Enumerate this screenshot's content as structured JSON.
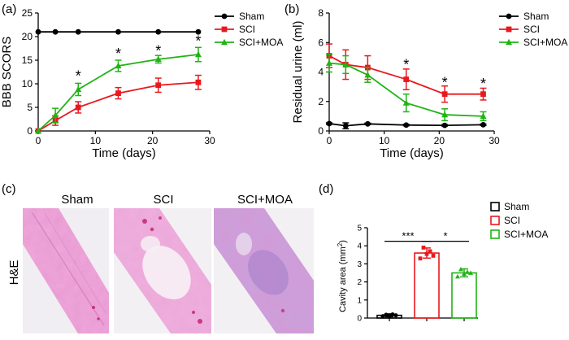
{
  "panel_labels": [
    "(a)",
    "(b)",
    "(c)",
    "(d)"
  ],
  "colors": {
    "sham": "#000000",
    "sci": "#e8191e",
    "moa": "#1fb414"
  },
  "chart_data": [
    {
      "panel": "a",
      "type": "line",
      "xlabel": "Time (days)",
      "ylabel": "BBB SCORS",
      "xlim": [
        0,
        30
      ],
      "ylim": [
        0,
        25
      ],
      "xticks": [
        0,
        10,
        20,
        30
      ],
      "yticks": [
        0,
        5,
        10,
        15,
        20,
        25
      ],
      "x": [
        0,
        3,
        7,
        14,
        21,
        28
      ],
      "series": [
        {
          "name": "Sham",
          "color": "#000000",
          "marker": "circle",
          "values": [
            21,
            21,
            21,
            21,
            21,
            21
          ],
          "errors": [
            0,
            0,
            0,
            0,
            0,
            0
          ]
        },
        {
          "name": "SCI",
          "color": "#e8191e",
          "marker": "square",
          "values": [
            0,
            2.2,
            5,
            8,
            9.7,
            10.3
          ],
          "errors": [
            0,
            1,
            1.2,
            1.2,
            1.5,
            1.5
          ]
        },
        {
          "name": "SCI+MOA",
          "color": "#1fb414",
          "marker": "triangle",
          "values": [
            0,
            3.3,
            8.8,
            13.8,
            15.2,
            16.2
          ],
          "errors": [
            0,
            1.5,
            1.3,
            1.2,
            0.8,
            1.5
          ]
        }
      ],
      "significance": [
        {
          "x": 7,
          "y": 12,
          "label": "*"
        },
        {
          "x": 14,
          "y": 16.7,
          "label": "*"
        },
        {
          "x": 21,
          "y": 17.3,
          "label": "*"
        },
        {
          "x": 28,
          "y": 19.4,
          "label": "*"
        }
      ],
      "legend": [
        "Sham",
        "SCI",
        "SCI+MOA"
      ]
    },
    {
      "panel": "b",
      "type": "line",
      "xlabel": "Time (days)",
      "ylabel": "Residual urine (ml)",
      "xlim": [
        0,
        30
      ],
      "ylim": [
        0,
        8
      ],
      "xticks": [
        0,
        10,
        20,
        30
      ],
      "yticks": [
        0,
        2,
        4,
        6,
        8
      ],
      "x": [
        0,
        3,
        7,
        14,
        21,
        28
      ],
      "series": [
        {
          "name": "Sham",
          "color": "#000000",
          "marker": "circle",
          "values": [
            0.5,
            0.35,
            0.48,
            0.4,
            0.38,
            0.42
          ],
          "errors": [
            0.05,
            0.2,
            0.05,
            0.05,
            0.05,
            0.05
          ]
        },
        {
          "name": "SCI",
          "color": "#e8191e",
          "marker": "square",
          "values": [
            5.1,
            4.5,
            4.3,
            3.5,
            2.5,
            2.5
          ],
          "errors": [
            0.8,
            1,
            0.8,
            0.7,
            0.55,
            0.4
          ]
        },
        {
          "name": "SCI+MOA",
          "color": "#1fb414",
          "marker": "triangle",
          "values": [
            4.6,
            4.5,
            3.8,
            1.9,
            1.1,
            1.0
          ],
          "errors": [
            0.6,
            0.6,
            0.5,
            0.6,
            0.4,
            0.3
          ]
        }
      ],
      "significance": [
        {
          "x": 14,
          "y": 4.6,
          "label": "*"
        },
        {
          "x": 21,
          "y": 3.4,
          "label": "*"
        },
        {
          "x": 28,
          "y": 3.3,
          "label": "*"
        }
      ],
      "legend": [
        "Sham",
        "SCI",
        "SCI+MOA"
      ]
    },
    {
      "panel": "d",
      "type": "bar",
      "ylabel": "Cavity area (mm²)",
      "ylabel_main": "Cavity area (mm",
      "ylabel_sup": "2",
      "ylabel_close": ")",
      "ylim": [
        0,
        5
      ],
      "yticks": [
        0,
        1,
        2,
        3,
        4,
        5
      ],
      "categories": [
        "Sham",
        "SCI",
        "SCI+MOA"
      ],
      "values": [
        0.15,
        3.6,
        2.5
      ],
      "errors": [
        0.08,
        0.28,
        0.22
      ],
      "colors": [
        "#000000",
        "#e8191e",
        "#1fb414"
      ],
      "points": [
        [
          0.1,
          0.18,
          0.12,
          0.2,
          0.15
        ],
        [
          3.3,
          3.9,
          3.55,
          3.7,
          3.45
        ],
        [
          2.3,
          2.7,
          2.45,
          2.55,
          2.5
        ]
      ],
      "comparisons": [
        {
          "from": 0,
          "to": 1,
          "y": 4.25,
          "label": "***"
        },
        {
          "from": 1,
          "to": 2,
          "y": 4.25,
          "label": "*"
        }
      ],
      "legend": [
        "Sham",
        "SCI",
        "SCI+MOA"
      ]
    }
  ],
  "histology": {
    "row_label": "H&E",
    "columns": [
      "Sham",
      "SCI",
      "SCI+MOA"
    ]
  }
}
